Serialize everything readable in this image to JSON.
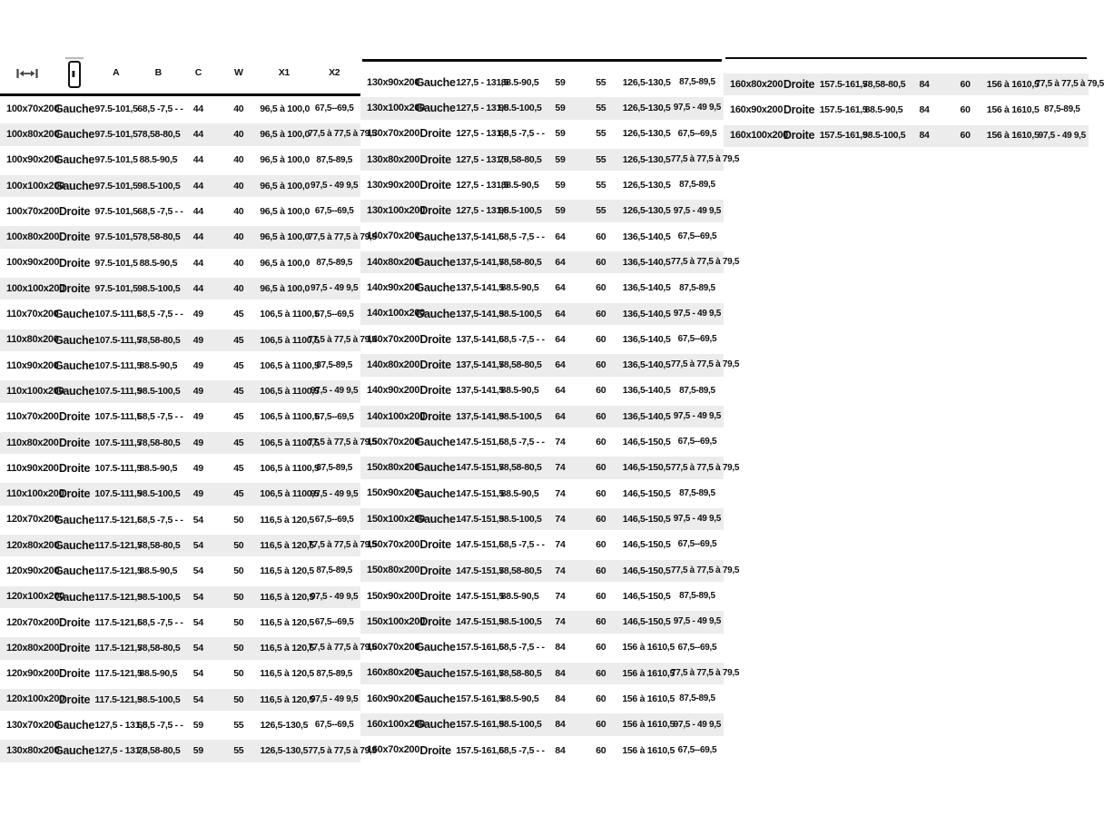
{
  "header": {
    "icons": [
      "width-arrow-icon",
      "door-icon"
    ],
    "columns": [
      "A",
      "B",
      "C",
      "W",
      "X1",
      "X2"
    ]
  },
  "colors": {
    "text": "#111111",
    "stripe": "#ececec",
    "rule": "#000000",
    "icon_gray": "#bbbbbb"
  },
  "tables": {
    "left": {
      "rows": [
        [
          "100x70x200",
          "Gauche",
          "97.5-101,5",
          "68,5 -7,5 - -",
          "44",
          "40",
          "96,5 à 100,0",
          "67,5--69,5"
        ],
        [
          "100x80x200",
          "Gauche",
          "97.5-101,5",
          "78,58-80,5",
          "44",
          "40",
          "96,5 à 100,0",
          "77,5 à 77,5 à 79,5"
        ],
        [
          "100x90x200",
          "Gauche",
          "97.5-101,5",
          "88.5-90,5",
          "44",
          "40",
          "96,5 à 100,0",
          "87,5-89,5"
        ],
        [
          "100x100x200",
          "Gauche",
          "97.5-101,5",
          "98.5-100,5",
          "44",
          "40",
          "96,5 à 100,0",
          "97,5 - 49 9,5"
        ],
        [
          "100x70x200",
          "Droite",
          "97.5-101,5",
          "68,5 -7,5 - -",
          "44",
          "40",
          "96,5 à 100,0",
          "67,5--69,5"
        ],
        [
          "100x80x200",
          "Droite",
          "97.5-101,5",
          "78,58-80,5",
          "44",
          "40",
          "96,5 à 100,0",
          "77,5 à 77,5 à 79,5"
        ],
        [
          "100x90x200",
          "Droite",
          "97.5-101,5",
          "88.5-90,5",
          "44",
          "40",
          "96,5 à 100,0",
          "87,5-89,5"
        ],
        [
          "100x100x200",
          "Droite",
          "97.5-101,5",
          "98.5-100,5",
          "44",
          "40",
          "96,5 à 100,0",
          "97,5 - 49 9,5"
        ],
        [
          "110x70x200",
          "Gauche",
          "107.5-111,5",
          "68,5 -7,5 - -",
          "49",
          "45",
          "106,5 à 1100,5",
          "67,5--69,5"
        ],
        [
          "110x80x200",
          "Gauche",
          "107.5-111,5",
          "78,58-80,5",
          "49",
          "45",
          "106,5 à 1100,5",
          "77,5 à 77,5 à 79,5"
        ],
        [
          "110x90x200",
          "Gauche",
          "107.5-111,5",
          "88.5-90,5",
          "49",
          "45",
          "106,5 à 1100,5",
          "87,5-89,5"
        ],
        [
          "110x100x200",
          "Gauche",
          "107.5-111,5",
          "98.5-100,5",
          "49",
          "45",
          "106,5 à 1100,5",
          "97,5 - 49 9,5"
        ],
        [
          "110x70x200",
          "Droite",
          "107.5-111,5",
          "68,5 -7,5 - -",
          "49",
          "45",
          "106,5 à 1100,5",
          "67,5--69,5"
        ],
        [
          "110x80x200",
          "Droite",
          "107.5-111,5",
          "78,58-80,5",
          "49",
          "45",
          "106,5 à 1100,5",
          "77,5 à 77,5 à 79,5"
        ],
        [
          "110x90x200",
          "Droite",
          "107.5-111,5",
          "88.5-90,5",
          "49",
          "45",
          "106,5 à 1100,5",
          "87,5-89,5"
        ],
        [
          "110x100x200",
          "Droite",
          "107.5-111,5",
          "98.5-100,5",
          "49",
          "45",
          "106,5 à 1100,5",
          "97,5 - 49 9,5"
        ],
        [
          "120x70x200",
          "Gauche",
          "117.5-121,5",
          "68,5 -7,5 - -",
          "54",
          "50",
          "116,5 à 120,5",
          "67,5--69,5"
        ],
        [
          "120x80x200",
          "Gauche",
          "117.5-121,5",
          "78,58-80,5",
          "54",
          "50",
          "116,5 à 120,5",
          "77,5 à 77,5 à 79,5"
        ],
        [
          "120x90x200",
          "Gauche",
          "117.5-121,5",
          "88.5-90,5",
          "54",
          "50",
          "116,5 à 120,5",
          "87,5-89,5"
        ],
        [
          "120x100x200",
          "Gauche",
          "117.5-121,5",
          "98.5-100,5",
          "54",
          "50",
          "116,5 à 120,5",
          "97,5 - 49 9,5"
        ],
        [
          "120x70x200",
          "Droite",
          "117.5-121,5",
          "68,5 -7,5 - -",
          "54",
          "50",
          "116,5 à 120,5",
          "67,5--69,5"
        ],
        [
          "120x80x200",
          "Droite",
          "117.5-121,5",
          "78,58-80,5",
          "54",
          "50",
          "116,5 à 120,5",
          "77,5 à 77,5 à 79,5"
        ],
        [
          "120x90x200",
          "Droite",
          "117.5-121,5",
          "88.5-90,5",
          "54",
          "50",
          "116,5 à 120,5",
          "87,5-89,5"
        ],
        [
          "120x100x200",
          "Droite",
          "117.5-121,5",
          "98.5-100,5",
          "54",
          "50",
          "116,5 à 120,5",
          "97,5 - 49 9,5"
        ],
        [
          "130x70x200",
          "Gauche",
          "127,5 - 131,5",
          "68,5 -7,5 - -",
          "59",
          "55",
          "126,5-130,5",
          "67,5--69,5"
        ],
        [
          "130x80x200",
          "Gauche",
          "127,5 - 131,5",
          "78,58-80,5",
          "59",
          "55",
          "126,5-130,5",
          "77,5 à 77,5 à 79,5"
        ]
      ]
    },
    "middle": {
      "rows": [
        [
          "130x90x200",
          "Gauche",
          "127,5 - 131,5",
          "88.5-90,5",
          "59",
          "55",
          "126,5-130,5",
          "87,5-89,5"
        ],
        [
          "130x100x200",
          "Gauche",
          "127,5 - 131,5",
          "98.5-100,5",
          "59",
          "55",
          "126,5-130,5",
          "97,5 - 49 9,5"
        ],
        [
          "130x70x200",
          "Droite",
          "127,5 - 131,5",
          "68,5 -7,5 - -",
          "59",
          "55",
          "126,5-130,5",
          "67,5--69,5"
        ],
        [
          "130x80x200",
          "Droite",
          "127,5 - 131,5",
          "78,58-80,5",
          "59",
          "55",
          "126,5-130,5",
          "77,5 à 77,5 à 79,5"
        ],
        [
          "130x90x200",
          "Droite",
          "127,5 - 131,5",
          "88.5-90,5",
          "59",
          "55",
          "126,5-130,5",
          "87,5-89,5"
        ],
        [
          "130x100x200",
          "Droite",
          "127,5 - 131,5",
          "98.5-100,5",
          "59",
          "55",
          "126,5-130,5",
          "97,5 - 49 9,5"
        ],
        [
          "140x70x200",
          "Gauche",
          "137,5-141,5",
          "68,5 -7,5 - -",
          "64",
          "60",
          "136,5-140,5",
          "67,5--69,5"
        ],
        [
          "140x80x200",
          "Gauche",
          "137,5-141,5",
          "78,58-80,5",
          "64",
          "60",
          "136,5-140,5",
          "77,5 à 77,5 à 79,5"
        ],
        [
          "140x90x200",
          "Gauche",
          "137,5-141,5",
          "88.5-90,5",
          "64",
          "60",
          "136,5-140,5",
          "87,5-89,5"
        ],
        [
          "140x100x200",
          "Gauche",
          "137,5-141,5",
          "98.5-100,5",
          "64",
          "60",
          "136,5-140,5",
          "97,5 - 49 9,5"
        ],
        [
          "140x70x200",
          "Droite",
          "137,5-141,5",
          "68,5 -7,5 - -",
          "64",
          "60",
          "136,5-140,5",
          "67,5--69,5"
        ],
        [
          "140x80x200",
          "Droite",
          "137,5-141,5",
          "78,58-80,5",
          "64",
          "60",
          "136,5-140,5",
          "77,5 à 77,5 à 79,5"
        ],
        [
          "140x90x200",
          "Droite",
          "137,5-141,5",
          "88.5-90,5",
          "64",
          "60",
          "136,5-140,5",
          "87,5-89,5"
        ],
        [
          "140x100x200",
          "Droite",
          "137,5-141,5",
          "98.5-100,5",
          "64",
          "60",
          "136,5-140,5",
          "97,5 - 49 9,5"
        ],
        [
          "150x70x200",
          "Gauche",
          "147.5-151,5",
          "68,5 -7,5 - -",
          "74",
          "60",
          "146,5-150,5",
          "67,5--69,5"
        ],
        [
          "150x80x200",
          "Gauche",
          "147.5-151,5",
          "78,58-80,5",
          "74",
          "60",
          "146,5-150,5",
          "77,5 à 77,5 à 79,5"
        ],
        [
          "150x90x200",
          "Gauche",
          "147.5-151,5",
          "88.5-90,5",
          "74",
          "60",
          "146,5-150,5",
          "87,5-89,5"
        ],
        [
          "150x100x200",
          "Gauche",
          "147.5-151,5",
          "98.5-100,5",
          "74",
          "60",
          "146,5-150,5",
          "97,5 - 49 9,5"
        ],
        [
          "150x70x200",
          "Droite",
          "147.5-151,5",
          "68,5 -7,5 - -",
          "74",
          "60",
          "146,5-150,5",
          "67,5--69,5"
        ],
        [
          "150x80x200",
          "Droite",
          "147.5-151,5",
          "78,58-80,5",
          "74",
          "60",
          "146,5-150,5",
          "77,5 à 77,5 à 79,5"
        ],
        [
          "150x90x200",
          "Droite",
          "147.5-151,5",
          "88.5-90,5",
          "74",
          "60",
          "146,5-150,5",
          "87,5-89,5"
        ],
        [
          "150x100x200",
          "Droite",
          "147.5-151,5",
          "98.5-100,5",
          "74",
          "60",
          "146,5-150,5",
          "97,5 - 49 9,5"
        ],
        [
          "160x70x200",
          "Gauche",
          "157.5-161,5",
          "68,5 -7,5 - -",
          "84",
          "60",
          "156 à 1610,5",
          "67,5--69,5"
        ],
        [
          "160x80x200",
          "Gauche",
          "157.5-161,5",
          "78,58-80,5",
          "84",
          "60",
          "156 à 1610,5",
          "77,5 à 77,5 à 79,5"
        ],
        [
          "160x90x200",
          "Gauche",
          "157.5-161,5",
          "88.5-90,5",
          "84",
          "60",
          "156 à 1610,5",
          "87,5-89,5"
        ],
        [
          "160x100x200",
          "Gauche",
          "157.5-161,5",
          "98.5-100,5",
          "84",
          "60",
          "156 à 1610,5",
          "97,5 - 49 9,5"
        ],
        [
          "160x70x200",
          "Droite",
          "157.5-161,5",
          "68,5 -7,5 - -",
          "84",
          "60",
          "156 à 1610,5",
          "67,5--69,5"
        ]
      ]
    },
    "right": {
      "rows": [
        [
          "160x80x200",
          "Droite",
          "157.5-161,5",
          "78,58-80,5",
          "84",
          "60",
          "156 à 1610,5",
          "77,5 à 77,5 à 79,5"
        ],
        [
          "160x90x200",
          "Droite",
          "157.5-161,5",
          "88.5-90,5",
          "84",
          "60",
          "156 à 1610,5",
          "87,5-89,5"
        ],
        [
          "160x100x200",
          "Droite",
          "157.5-161,5",
          "98.5-100,5",
          "84",
          "60",
          "156 à 1610,5",
          "97,5 - 49 9,5"
        ]
      ]
    }
  }
}
